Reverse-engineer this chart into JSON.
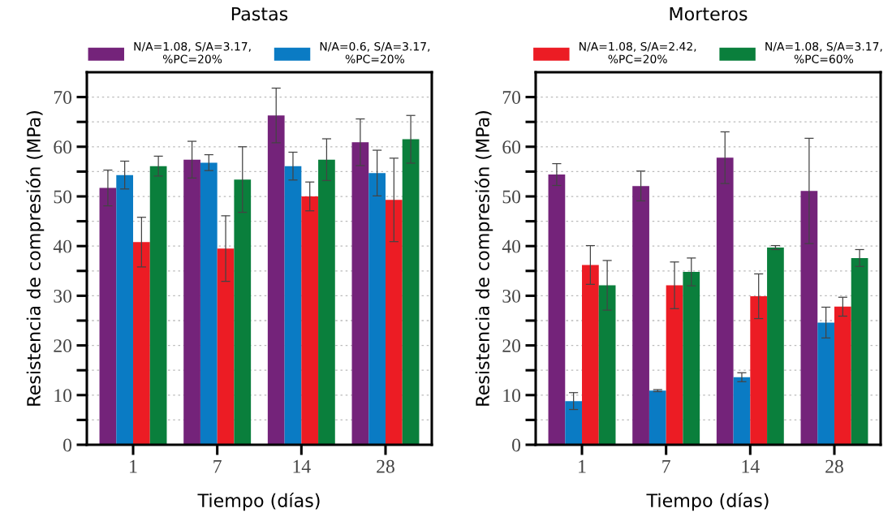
{
  "chart_data": [
    {
      "type": "bar",
      "title": "Pastas",
      "xlabel": "Tiempo (días)",
      "ylabel": "Resistencia de compresión (MPa)",
      "categories": [
        "1",
        "7",
        "14",
        "28"
      ],
      "ylim": [
        0,
        75
      ],
      "yticks": [
        0,
        {
          "value": 5,
          "label": null
        },
        10,
        {
          "value": 15,
          "label": null
        },
        20,
        {
          "value": 25,
          "label": null
        },
        30,
        {
          "value": 35,
          "label": null
        },
        40,
        {
          "value": 45,
          "label": null
        },
        50,
        {
          "value": 55,
          "label": null
        },
        60,
        {
          "value": 65,
          "label": null
        },
        70
      ],
      "grid": "y",
      "legend": "top",
      "series": [
        {
          "name": "N/A=1.08, S/A=3.17,\n%PC=20%",
          "color": "#74237a",
          "values": [
            51.7,
            57.4,
            66.3,
            60.9
          ],
          "errors": [
            3.6,
            3.7,
            5.5,
            4.7
          ]
        },
        {
          "name": "N/A=0.6, S/A=3.17,\n%PC=20%",
          "color": "#0a7bc4",
          "values": [
            54.3,
            56.8,
            56.1,
            54.7
          ],
          "errors": [
            2.8,
            1.6,
            2.8,
            4.6
          ]
        },
        {
          "color": "#ec1c24",
          "values": [
            40.8,
            39.5,
            50.0,
            49.3
          ],
          "errors": [
            5.0,
            6.6,
            2.9,
            8.4
          ]
        },
        {
          "color": "#0a7f3c",
          "values": [
            56.1,
            53.4,
            57.4,
            61.5
          ],
          "errors": [
            2.0,
            6.6,
            4.2,
            4.8
          ]
        }
      ]
    },
    {
      "type": "bar",
      "title": "Morteros",
      "xlabel": "Tiempo (días)",
      "ylabel": "Resistencia de compresión (MPa)",
      "categories": [
        "1",
        "7",
        "14",
        "28"
      ],
      "ylim": [
        0,
        75
      ],
      "yticks": [
        0,
        {
          "value": 5,
          "label": null
        },
        10,
        {
          "value": 15,
          "label": null
        },
        20,
        {
          "value": 25,
          "label": null
        },
        30,
        {
          "value": 35,
          "label": null
        },
        40,
        {
          "value": 45,
          "label": null
        },
        50,
        {
          "value": 55,
          "label": null
        },
        60,
        {
          "value": 65,
          "label": null
        },
        70
      ],
      "grid": "y",
      "legend": "top",
      "series": [
        {
          "color": "#74237a",
          "values": [
            54.4,
            52.1,
            57.8,
            51.1
          ],
          "errors": [
            2.2,
            3.0,
            5.2,
            10.6
          ]
        },
        {
          "color": "#0a7bc4",
          "values": [
            8.8,
            10.9,
            13.6,
            24.6
          ],
          "errors": [
            1.7,
            0.2,
            0.9,
            3.1
          ]
        },
        {
          "name": "N/A=1.08, S/A=2.42,\n%PC=20%",
          "color": "#ec1c24",
          "values": [
            36.2,
            32.1,
            29.9,
            27.8
          ],
          "errors": [
            3.9,
            4.7,
            4.5,
            1.9
          ]
        },
        {
          "name": "N/A=1.08, S/A=3.17,\n%PC=60%",
          "color": "#0a7f3c",
          "values": [
            32.1,
            34.8,
            39.7,
            37.6
          ],
          "errors": [
            5.0,
            2.8,
            0.4,
            1.7
          ]
        }
      ]
    }
  ]
}
